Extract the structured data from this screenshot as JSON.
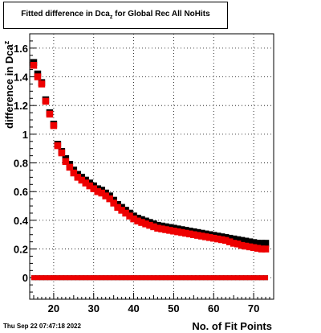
{
  "title": {
    "main": "Fitted difference in Dca",
    "sub": "z",
    "rest": " for Global Rec All NoHits"
  },
  "timestamp": "Thu Sep 22 07:47:18 2022",
  "colors": {
    "black_series": "#000000",
    "red_series": "#ee0000",
    "grid": "#000000"
  },
  "chart_data": {
    "type": "scatter",
    "xlabel": "No. of Fit Points",
    "ylabel": "difference in Dca",
    "ylabel_sub": "z",
    "xlim": [
      14,
      75
    ],
    "ylim": [
      -0.15,
      1.7
    ],
    "grid": true,
    "x_ticks": [
      20,
      30,
      40,
      50,
      60,
      70
    ],
    "y_ticks": [
      {
        "value": 0,
        "label": "0"
      },
      {
        "value": 0.2,
        "label": "0.2"
      },
      {
        "value": 0.4,
        "label": "0.4"
      },
      {
        "value": 0.6,
        "label": "0.6"
      },
      {
        "value": 0.8,
        "label": "0.8"
      },
      {
        "value": 1.0,
        "label": "1"
      },
      {
        "value": 1.2,
        "label": "1.2"
      },
      {
        "value": 1.4,
        "label": "1.4"
      },
      {
        "value": 1.6,
        "label": "1.6"
      }
    ],
    "series": [
      {
        "color": "#000000",
        "x": [
          15,
          16,
          17,
          18,
          19,
          20,
          21,
          22,
          23,
          24,
          25,
          26,
          27,
          28,
          29,
          30,
          31,
          32,
          33,
          34,
          35,
          36,
          37,
          38,
          39,
          40,
          41,
          42,
          43,
          44,
          45,
          46,
          47,
          48,
          49,
          50,
          51,
          52,
          53,
          54,
          55,
          56,
          57,
          58,
          59,
          60,
          61,
          62,
          63,
          64,
          65,
          66,
          67,
          68,
          69,
          70,
          71,
          72,
          73
        ],
        "y": [
          1.5,
          1.42,
          1.36,
          1.24,
          1.15,
          1.07,
          0.93,
          0.88,
          0.83,
          0.79,
          0.75,
          0.72,
          0.7,
          0.68,
          0.66,
          0.64,
          0.62,
          0.61,
          0.59,
          0.57,
          0.54,
          0.51,
          0.49,
          0.47,
          0.45,
          0.43,
          0.415,
          0.405,
          0.395,
          0.385,
          0.375,
          0.365,
          0.36,
          0.355,
          0.35,
          0.345,
          0.34,
          0.335,
          0.33,
          0.325,
          0.32,
          0.315,
          0.31,
          0.305,
          0.3,
          0.295,
          0.29,
          0.285,
          0.28,
          0.275,
          0.27,
          0.265,
          0.26,
          0.255,
          0.25,
          0.245,
          0.24,
          0.24,
          0.24
        ],
        "flat": 0.0
      },
      {
        "color": "#ee0000",
        "x": [
          15,
          16,
          17,
          18,
          19,
          20,
          21,
          22,
          23,
          24,
          25,
          26,
          27,
          28,
          29,
          30,
          31,
          32,
          33,
          34,
          35,
          36,
          37,
          38,
          39,
          40,
          41,
          42,
          43,
          44,
          45,
          46,
          47,
          48,
          49,
          50,
          51,
          52,
          53,
          54,
          55,
          56,
          57,
          58,
          59,
          60,
          61,
          62,
          63,
          64,
          65,
          66,
          67,
          68,
          69,
          70,
          71,
          72,
          73
        ],
        "y": [
          1.48,
          1.4,
          1.35,
          1.23,
          1.14,
          1.06,
          0.92,
          0.87,
          0.81,
          0.77,
          0.73,
          0.7,
          0.68,
          0.66,
          0.64,
          0.62,
          0.6,
          0.59,
          0.57,
          0.55,
          0.52,
          0.49,
          0.47,
          0.45,
          0.43,
          0.41,
          0.395,
          0.385,
          0.375,
          0.365,
          0.355,
          0.345,
          0.34,
          0.335,
          0.33,
          0.325,
          0.32,
          0.315,
          0.31,
          0.305,
          0.3,
          0.295,
          0.29,
          0.285,
          0.28,
          0.275,
          0.27,
          0.265,
          0.26,
          0.25,
          0.24,
          0.235,
          0.225,
          0.22,
          0.215,
          0.21,
          0.205,
          0.2,
          0.2
        ],
        "flat": 0.0
      }
    ]
  }
}
